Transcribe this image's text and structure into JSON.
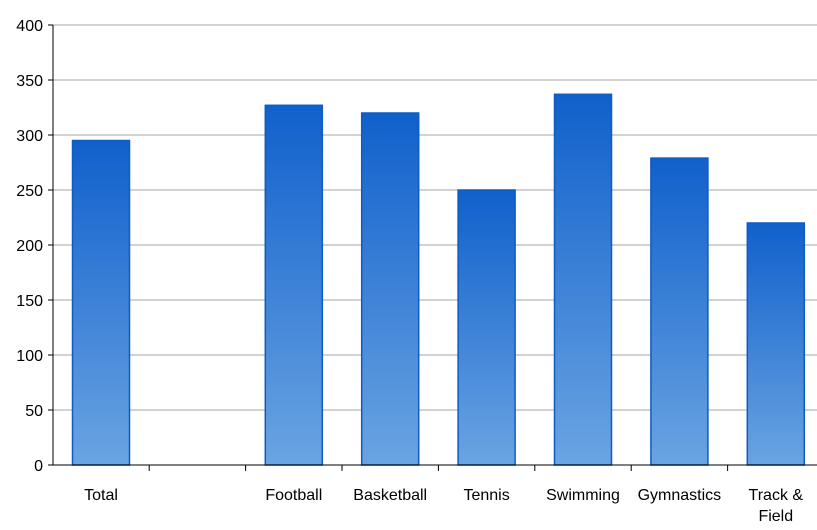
{
  "chart_data": {
    "type": "bar",
    "categories": [
      "Total",
      "",
      "Football",
      "Basketball",
      "Tennis",
      "Swimming",
      "Gymnastics",
      "Track & Field"
    ],
    "category_lines": [
      [
        "Total"
      ],
      [],
      [
        "Football"
      ],
      [
        "Basketball"
      ],
      [
        "Tennis"
      ],
      [
        "Swimming"
      ],
      [
        "Gymnastics"
      ],
      [
        "Track &",
        "Field"
      ]
    ],
    "values": [
      295,
      null,
      327,
      320,
      250,
      337,
      279,
      220
    ],
    "ylim": [
      0,
      400
    ],
    "yticks": [
      0,
      50,
      100,
      150,
      200,
      250,
      300,
      350,
      400
    ],
    "title": "",
    "xlabel": "",
    "ylabel": "",
    "grid": true,
    "legend": "none",
    "colors": {
      "bar_top": "#1060cc",
      "bar_bottom": "#6aa4e2",
      "bar_edge": "#0e5bc4",
      "grid": "#a6a6a6",
      "axis": "#000000"
    }
  }
}
